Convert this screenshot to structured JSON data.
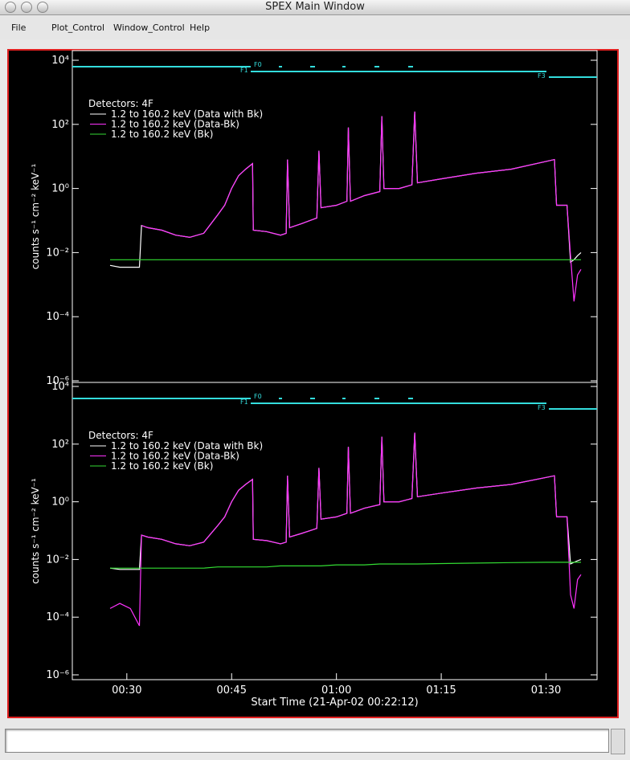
{
  "window": {
    "title": "SPEX Main Window",
    "menu": [
      "File",
      "Plot_Control",
      "Window_Control",
      "Help"
    ]
  },
  "chart_data": [
    {
      "type": "line",
      "log_y": true,
      "legend_title": "Detectors: 4F",
      "ylabel": "counts s⁻¹ cm⁻² keV⁻¹",
      "annotations": [
        "F0",
        "F1",
        "F3"
      ],
      "x": [
        27.6,
        29,
        30.5,
        31.8,
        32.1,
        33,
        35,
        37,
        39,
        41,
        43,
        44,
        45,
        46,
        47,
        48.0,
        48.1,
        50,
        52,
        52.8,
        53,
        53.3,
        55,
        57.2,
        57.5,
        57.8,
        60,
        61.5,
        61.7,
        62,
        64,
        66.2,
        66.5,
        66.8,
        69,
        70.8,
        71.2,
        71.6,
        75,
        80,
        85,
        90,
        91.2,
        91.5,
        93,
        93.5,
        94,
        94.5,
        95
      ],
      "xlim": [
        22.2,
        97.3
      ],
      "ylim": [
        1e-06,
        10000
      ],
      "yticks": [
        {
          "value": 10000,
          "label": "10⁴"
        },
        {
          "value": 100,
          "label": "10²"
        },
        {
          "value": 1,
          "label": "10⁰"
        },
        {
          "value": 0.01,
          "label": "10⁻²"
        },
        {
          "value": 0.0001,
          "label": "10⁻⁴"
        },
        {
          "value": 1e-06,
          "label": "10⁻⁶"
        }
      ],
      "series": [
        {
          "name": "1.2 to 160.2 keV (Data with Bk)",
          "color": "#ffffff",
          "values": [
            0.004,
            0.0035,
            0.0035,
            0.0035,
            0.07,
            0.06,
            0.05,
            0.035,
            0.03,
            0.04,
            0.15,
            0.3,
            1,
            2.5,
            4,
            6,
            0.05,
            0.045,
            0.035,
            0.04,
            8,
            0.06,
            0.08,
            0.12,
            15,
            0.25,
            0.3,
            0.4,
            80,
            0.4,
            0.6,
            0.8,
            180,
            1,
            1,
            1.3,
            250,
            1.5,
            2,
            3,
            4,
            7,
            8,
            0.3,
            0.3,
            0.005,
            0.006,
            0.008,
            0.01
          ]
        },
        {
          "name": "1.2 to 160.2 keV (Data-Bk)",
          "color": "#ff33ff",
          "values": [
            null,
            null,
            null,
            null,
            0.07,
            0.06,
            0.05,
            0.035,
            0.03,
            0.04,
            0.15,
            0.3,
            1,
            2.5,
            4,
            6,
            0.05,
            0.045,
            0.035,
            0.04,
            8,
            0.06,
            0.08,
            0.12,
            15,
            0.25,
            0.3,
            0.4,
            80,
            0.4,
            0.6,
            0.8,
            180,
            1,
            1,
            1.3,
            250,
            1.5,
            2,
            3,
            4,
            7,
            8,
            0.3,
            0.3,
            0.008,
            0.0003,
            0.002,
            0.003
          ]
        },
        {
          "name": "1.2 to 160.2 keV (Bk)",
          "color": "#33dd33",
          "values": [
            0.006,
            0.006,
            0.006,
            0.006,
            0.006,
            0.006,
            0.006,
            0.006,
            0.006,
            0.006,
            0.006,
            0.006,
            0.006,
            0.006,
            0.006,
            0.006,
            0.006,
            0.006,
            0.006,
            0.006,
            0.006,
            0.006,
            0.006,
            0.006,
            0.006,
            0.006,
            0.006,
            0.006,
            0.006,
            0.006,
            0.006,
            0.006,
            0.006,
            0.006,
            0.006,
            0.006,
            0.006,
            0.006,
            0.006,
            0.006,
            0.006,
            0.006,
            0.006,
            0.006,
            0.006,
            0.006,
            0.006,
            0.006,
            0.006
          ]
        }
      ]
    },
    {
      "type": "line",
      "log_y": true,
      "legend_title": "Detectors: 4F",
      "ylabel": "counts s⁻¹ cm⁻² keV⁻¹",
      "xlabel": "Start Time (21-Apr-02 00:22:12)",
      "annotations": [
        "F0",
        "F1",
        "F3"
      ],
      "x": [
        27.6,
        29,
        30.5,
        31.8,
        32.1,
        33,
        35,
        37,
        39,
        41,
        43,
        44,
        45,
        46,
        47,
        48.0,
        48.1,
        50,
        52,
        52.8,
        53,
        53.3,
        55,
        57.2,
        57.5,
        57.8,
        60,
        61.5,
        61.7,
        62,
        64,
        66.2,
        66.5,
        66.8,
        69,
        70.8,
        71.2,
        71.6,
        75,
        80,
        85,
        90,
        91.2,
        91.5,
        93,
        93.5,
        94,
        94.5,
        95
      ],
      "xlim": [
        22.2,
        97.3
      ],
      "xticks": [
        {
          "value": 30,
          "label": "00:30"
        },
        {
          "value": 45,
          "label": "00:45"
        },
        {
          "value": 60,
          "label": "01:00"
        },
        {
          "value": 75,
          "label": "01:15"
        },
        {
          "value": 90,
          "label": "01:30"
        }
      ],
      "ylim": [
        1e-06,
        10000
      ],
      "yticks": [
        {
          "value": 10000,
          "label": "10⁴"
        },
        {
          "value": 100,
          "label": "10²"
        },
        {
          "value": 1,
          "label": "10⁰"
        },
        {
          "value": 0.01,
          "label": "10⁻²"
        },
        {
          "value": 0.0001,
          "label": "10⁻⁴"
        },
        {
          "value": 1e-06,
          "label": "10⁻⁶"
        }
      ],
      "series": [
        {
          "name": "1.2 to 160.2 keV (Data with Bk)",
          "color": "#ffffff",
          "values": [
            0.005,
            0.0045,
            0.0045,
            0.0045,
            0.07,
            0.06,
            0.05,
            0.035,
            0.03,
            0.04,
            0.15,
            0.3,
            1,
            2.5,
            4,
            6,
            0.05,
            0.045,
            0.035,
            0.04,
            8,
            0.06,
            0.08,
            0.12,
            15,
            0.25,
            0.3,
            0.4,
            80,
            0.4,
            0.6,
            0.8,
            180,
            1,
            1,
            1.3,
            250,
            1.5,
            2,
            3,
            4,
            7,
            8,
            0.3,
            0.3,
            0.007,
            0.008,
            0.009,
            0.01
          ]
        },
        {
          "name": "1.2 to 160.2 keV (Data-Bk)",
          "color": "#ff33ff",
          "values": [
            0.0002,
            0.0003,
            0.0002,
            5e-05,
            0.07,
            0.06,
            0.05,
            0.035,
            0.03,
            0.04,
            0.15,
            0.3,
            1,
            2.5,
            4,
            6,
            0.05,
            0.045,
            0.035,
            0.04,
            8,
            0.06,
            0.08,
            0.12,
            15,
            0.25,
            0.3,
            0.4,
            80,
            0.4,
            0.6,
            0.8,
            180,
            1,
            1,
            1.3,
            250,
            1.5,
            2,
            3,
            4,
            7,
            8,
            0.3,
            0.3,
            0.0006,
            0.0002,
            0.002,
            0.003
          ]
        },
        {
          "name": "1.2 to 160.2 keV (Bk)",
          "color": "#33dd33",
          "values": [
            0.005,
            0.005,
            0.005,
            0.005,
            0.005,
            0.005,
            0.005,
            0.005,
            0.005,
            0.005,
            0.0055,
            0.0055,
            0.0055,
            0.0055,
            0.0055,
            0.0055,
            0.0055,
            0.0055,
            0.006,
            0.006,
            0.006,
            0.006,
            0.006,
            0.006,
            0.006,
            0.006,
            0.0065,
            0.0065,
            0.0065,
            0.0065,
            0.0065,
            0.007,
            0.007,
            0.007,
            0.007,
            0.007,
            0.007,
            0.007,
            0.0072,
            0.0075,
            0.0078,
            0.008,
            0.008,
            0.008,
            0.008,
            0.008,
            0.008,
            0.008,
            0.008
          ]
        }
      ]
    }
  ]
}
